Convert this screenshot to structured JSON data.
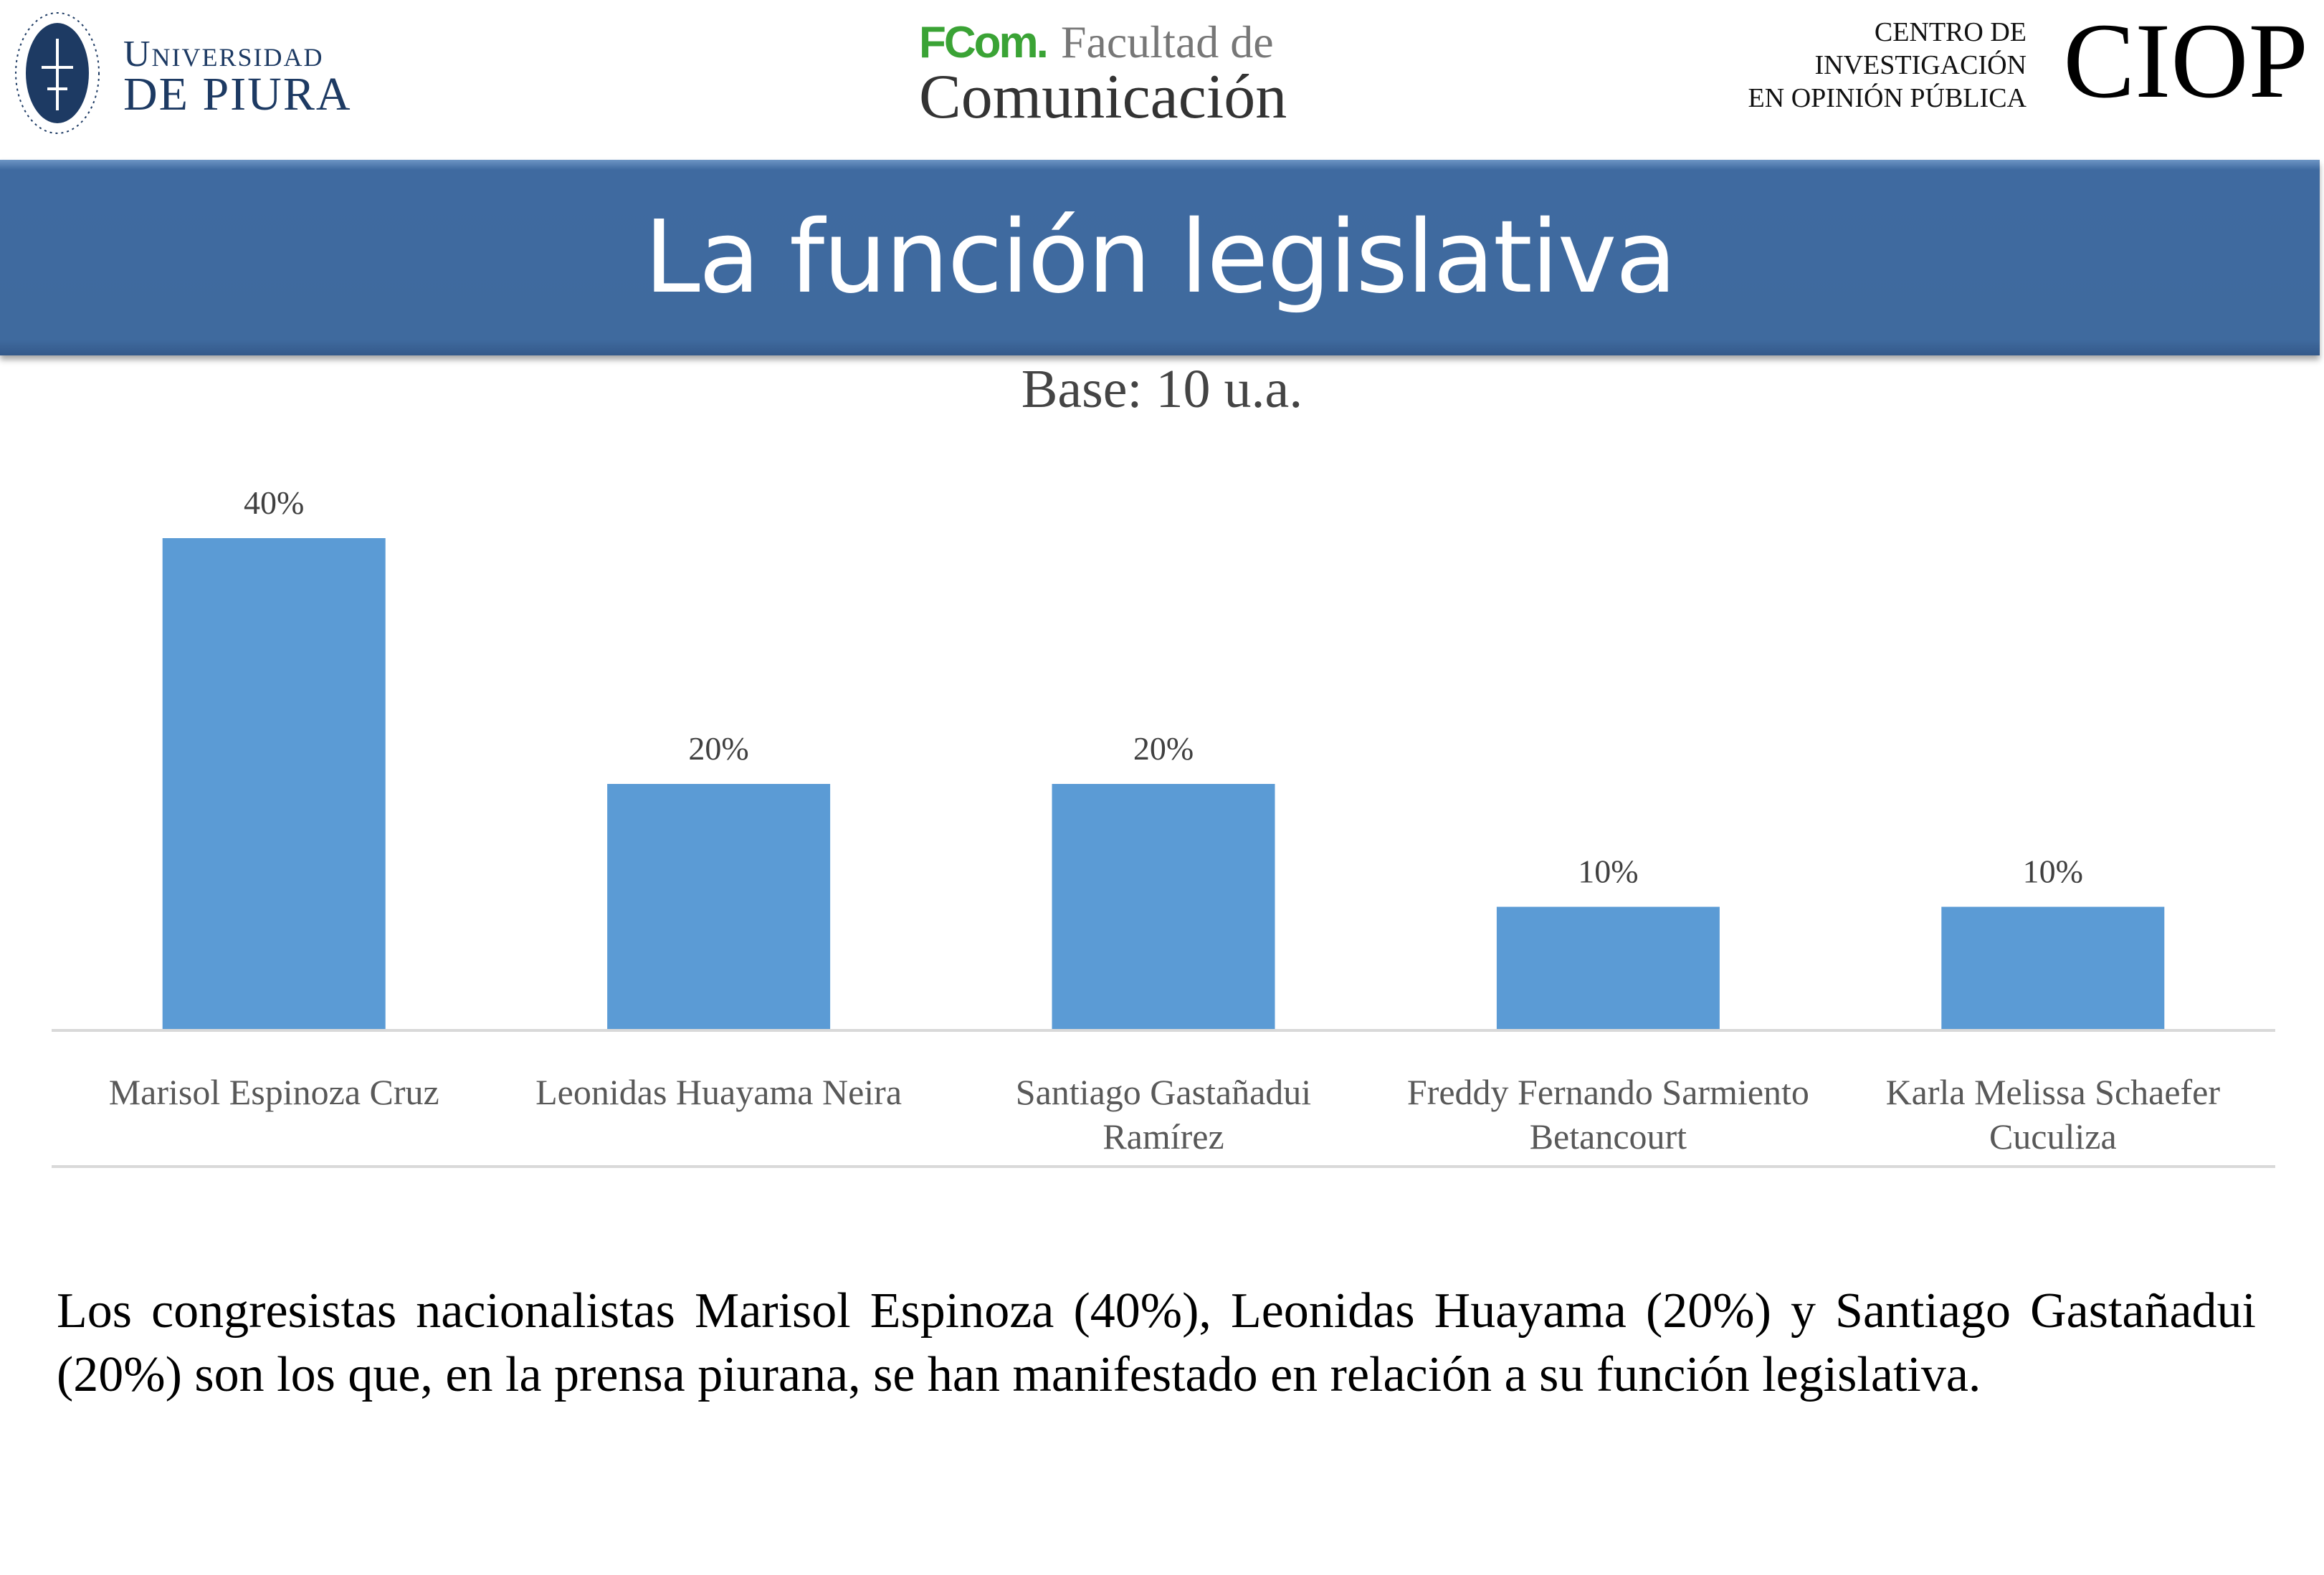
{
  "header": {
    "udep": {
      "line1": "Universidad",
      "line2": "de Piura",
      "seal_text": "Universitas Studiorum Piurensis"
    },
    "fcom": {
      "brand": "FCom.",
      "line1": "Facultad de",
      "line2": "Comunicación"
    },
    "ciop": {
      "line1": "CENTRO DE",
      "line2": "INVESTIGACIÓN",
      "line3": "EN OPINIÓN PÚBLICA",
      "acronym": "CIOP"
    }
  },
  "title": "La función legislativa",
  "base": "Base: 10 u.a.",
  "chart_data": {
    "type": "bar",
    "categories": [
      [
        "Marisol Espinoza Cruz"
      ],
      [
        "Leonidas Huayama Neira"
      ],
      [
        "Santiago Gastañadui",
        "Ramírez"
      ],
      [
        "Freddy Fernando Sarmiento",
        "Betancourt"
      ],
      [
        "Karla Melissa Schaefer",
        "Cuculiza"
      ]
    ],
    "values": [
      40,
      20,
      20,
      10,
      10
    ],
    "labels": [
      "40%",
      "20%",
      "20%",
      "10%",
      "10%"
    ],
    "ylim": [
      0,
      40
    ],
    "grid": false,
    "color": "#5b9bd5"
  },
  "paragraph": "Los congresistas nacionalistas Marisol Espinoza (40%), Leonidas Huayama (20%) y Santiago Gastañadui (20%) son los que, en la prensa piurana, se han manifestado en relación a su función legislativa."
}
